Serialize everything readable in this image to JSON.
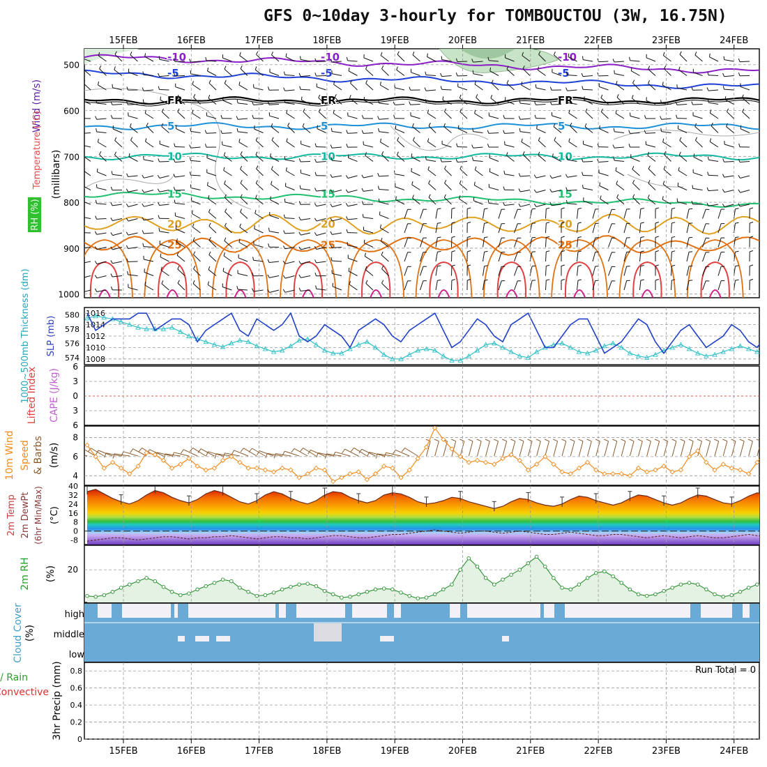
{
  "title": "GFS 0~10day 3-hourly for TOMBOUCTOU (3W, 16.75N)",
  "dates": [
    "15FEB",
    "16FEB",
    "17FEB",
    "18FEB",
    "19FEB",
    "20FEB",
    "21FEB",
    "22FEB",
    "23FEB",
    "24FEB"
  ],
  "colors": {
    "red": "#e03030",
    "orange": "#f08c1e",
    "green": "#2aa02a",
    "cyan": "#2ab8c8",
    "blue": "#2050d0",
    "purple": "#c060d0",
    "brown": "#8b5a2b",
    "sky": "#5aa8d8"
  },
  "panels": {
    "upper": {
      "label_wind": "Wind (m/s)",
      "label_temp": "Temperature (°C)",
      "label_rh": "RH (%)",
      "label_mb": "(millibars)",
      "levels": [
        "500",
        "600",
        "700",
        "800",
        "900",
        "1000"
      ],
      "contours": [
        {
          "label": "-10",
          "color": "#8a1fc8",
          "p": 484
        },
        {
          "label": "-5",
          "color": "#2040d8",
          "p": 519
        },
        {
          "label": "FR",
          "color": "#000000",
          "p": 578
        },
        {
          "label": "5",
          "color": "#1e90d8",
          "p": 634
        },
        {
          "label": "10",
          "color": "#10b8a0",
          "p": 700
        },
        {
          "label": "15",
          "color": "#20c070",
          "p": 782
        },
        {
          "label": "20",
          "color": "#e0a020",
          "p": 848
        },
        {
          "label": "25",
          "color": "#e07010",
          "p": 893
        }
      ]
    },
    "slp": {
      "label_thick": "1000~500mb Thickness (dm)",
      "label_slp": "SLP (mb)",
      "thick_ticks": [
        "580",
        "578",
        "576",
        "574"
      ],
      "slp_ticks": [
        "1016",
        "1014",
        "1012",
        "1010",
        "1008"
      ]
    },
    "cape": {
      "label_li": "Lifted Index",
      "label_cape": "CAPE (J/kg)",
      "ticks": [
        "6",
        "3",
        "0",
        "3",
        "6"
      ]
    },
    "wind10": {
      "label1": "10m Wind",
      "label2": "Speed",
      "label3": "& Barbs",
      "label4": "(m/s)",
      "ticks": [
        "8",
        "6",
        "4"
      ]
    },
    "temp2m": {
      "label1": "2m Temp",
      "label2": "2m DewPt",
      "label3": "(6hr Min/Max)",
      "label4": "(°C)",
      "ticks": [
        "40",
        "32",
        "24",
        "16",
        "8",
        "0",
        "-8"
      ]
    },
    "rh2m": {
      "label1": "2m RH",
      "label2": "(%)",
      "ticks": [
        "20"
      ]
    },
    "cloud": {
      "label1": "Cloud Cover",
      "label2": "(%)",
      "rows": [
        "high",
        "middle",
        "low"
      ]
    },
    "precip": {
      "label1": "Total / Rain",
      "label2": "Convective",
      "label3": "3hr Precip (mm)",
      "ticks": [
        "0.8",
        "0.6",
        "0.4",
        "0.2",
        "0"
      ],
      "run_total": "Run Total = 0"
    }
  },
  "chart_data": [
    {
      "type": "line",
      "name": "SLP (mb)",
      "x_start": "2025-02-14T12:00Z",
      "step_hours": 3,
      "ylim": [
        1007,
        1017
      ],
      "values": [
        1016,
        1013,
        1014,
        1015,
        1015,
        1015,
        1016,
        1016,
        1013,
        1014,
        1015,
        1015,
        1014,
        1011,
        1013,
        1014,
        1015,
        1016,
        1013,
        1012,
        1015,
        1014,
        1013,
        1014,
        1016,
        1012,
        1011,
        1012,
        1014,
        1013,
        1012,
        1010,
        1013,
        1014,
        1015,
        1014,
        1012,
        1011,
        1013,
        1014,
        1015,
        1016,
        1013,
        1010,
        1011,
        1013,
        1015,
        1014,
        1012,
        1011,
        1014,
        1015,
        1016,
        1013,
        1010,
        1010,
        1012,
        1014,
        1015,
        1015,
        1012,
        1009,
        1010,
        1011,
        1013,
        1015,
        1014,
        1011,
        1009,
        1011,
        1013,
        1014,
        1012,
        1010,
        1011,
        1012,
        1014,
        1013,
        1011,
        1010,
        1012,
        1014,
        1012,
        1010,
        1010,
        1011,
        1013
      ]
    },
    {
      "type": "line",
      "name": "1000~500mb Thickness (dm)",
      "x_start": "2025-02-14T12:00Z",
      "step_hours": 3,
      "ylim": [
        573,
        581
      ],
      "values": [
        579.5,
        579.8,
        579.6,
        579.4,
        579.0,
        578.6,
        578.2,
        578.0,
        578.0,
        578.0,
        578.2,
        577.6,
        577.0,
        576.6,
        576.2,
        575.8,
        575.5,
        576.0,
        576.4,
        576.2,
        575.6,
        575.2,
        574.8,
        575.0,
        575.6,
        576.4,
        576.6,
        575.8,
        575.0,
        574.6,
        574.6,
        575.2,
        575.8,
        576.2,
        575.4,
        574.4,
        573.8,
        573.8,
        574.4,
        575.0,
        575.2,
        575.0,
        574.2,
        573.6,
        573.6,
        574.2,
        575.0,
        575.8,
        576.0,
        575.4,
        574.8,
        574.2,
        574.0,
        574.8,
        575.4,
        575.8,
        576.0,
        575.4,
        574.8,
        574.6,
        575.0,
        575.6,
        576.0,
        575.4,
        574.6,
        574.2,
        574.0,
        574.4,
        575.0,
        575.4,
        575.8,
        575.2,
        574.6,
        574.2,
        574.4,
        574.8,
        575.2,
        575.6,
        575.2,
        574.8,
        575.4,
        576.0,
        576.2,
        575.8,
        575.4,
        575.0,
        574.6
      ]
    },
    {
      "type": "line",
      "name": "10m Wind Speed (m/s)",
      "x_start": "2025-02-14T12:00Z",
      "step_hours": 3,
      "ylim": [
        3,
        9
      ],
      "values": [
        7.2,
        6.0,
        4.8,
        5.4,
        4.8,
        4.2,
        5.0,
        6.4,
        6.2,
        5.6,
        4.8,
        5.2,
        5.8,
        5.0,
        4.6,
        4.8,
        5.6,
        6.0,
        5.4,
        4.8,
        4.8,
        4.6,
        4.4,
        4.8,
        4.6,
        3.8,
        4.2,
        4.8,
        4.6,
        3.4,
        3.8,
        4.2,
        4.4,
        3.6,
        4.2,
        5.0,
        4.8,
        3.8,
        4.6,
        5.8,
        7.0,
        9.0,
        7.8,
        6.8,
        6.0,
        5.4,
        5.6,
        5.4,
        5.2,
        5.8,
        6.2,
        5.6,
        4.6,
        5.2,
        6.0,
        5.2,
        4.4,
        4.2,
        4.8,
        5.4,
        4.6,
        4.2,
        4.2,
        4.2,
        4.0,
        4.8,
        4.4,
        4.6,
        5.0,
        4.4,
        4.6,
        6.0,
        6.6,
        5.4,
        4.6,
        5.2,
        4.8,
        4.6,
        4.2,
        5.4,
        6.6,
        5.0,
        3.4,
        4.0,
        4.6,
        4.8,
        4.6,
        4.8
      ]
    },
    {
      "type": "area",
      "name": "2m Temp (°C)",
      "x_start": "2025-02-14T12:00Z",
      "step_hours": 3,
      "ylim": [
        -12,
        40
      ],
      "values": [
        35,
        37,
        33,
        29,
        26,
        24,
        27,
        32,
        36,
        34,
        30,
        27,
        25,
        28,
        33,
        36,
        34,
        30,
        26,
        24,
        27,
        32,
        35,
        33,
        29,
        26,
        24,
        27,
        32,
        35,
        34,
        30,
        27,
        25,
        27,
        32,
        34,
        33,
        30,
        26,
        24,
        25,
        27,
        30,
        29,
        26,
        24,
        22,
        20,
        22,
        26,
        29,
        28,
        25,
        23,
        22,
        24,
        28,
        31,
        30,
        27,
        25,
        23,
        25,
        29,
        32,
        31,
        28,
        25,
        23,
        25,
        29,
        32,
        31,
        28,
        25,
        24,
        27,
        31,
        34,
        32,
        28,
        25,
        23,
        22,
        23
      ]
    },
    {
      "type": "line",
      "name": "2m DewPt (°C)",
      "x_start": "2025-02-14T12:00Z",
      "step_hours": 3,
      "values": [
        -9,
        -8,
        -7,
        -6,
        -6,
        -7,
        -8,
        -7,
        -6,
        -5,
        -5,
        -6,
        -7,
        -6,
        -6,
        -5,
        -5,
        -4,
        -5,
        -6,
        -7,
        -6,
        -5,
        -5,
        -6,
        -6,
        -7,
        -6,
        -5,
        -4,
        -4,
        -5,
        -6,
        -6,
        -5,
        -4,
        -3,
        -3,
        -2,
        -1,
        0,
        1,
        0,
        -1,
        -2,
        -1,
        0,
        0,
        -1,
        -2,
        -1,
        0,
        -1,
        -2,
        -3,
        -3,
        -2,
        -1,
        -2,
        -3,
        -4,
        -4,
        -3,
        -3,
        -4,
        -5,
        -6,
        -5,
        -4,
        -5,
        -6,
        -5,
        -4,
        -5,
        -6,
        -6,
        -5,
        -4,
        -3,
        -4,
        -5,
        -6,
        -7,
        -8,
        -9,
        -9
      ]
    },
    {
      "type": "area",
      "name": "2m RH (%)",
      "x_start": "2025-02-14T12:00Z",
      "step_hours": 3,
      "ylim": [
        0,
        35
      ],
      "values": [
        4,
        3.5,
        4.5,
        6.5,
        9,
        11,
        13,
        15,
        13,
        9.5,
        6.5,
        4.5,
        5.5,
        8,
        10,
        12,
        14,
        13,
        9,
        6.5,
        4,
        4.5,
        6,
        8,
        9.5,
        11,
        11.5,
        10,
        7,
        5,
        3,
        3.5,
        5,
        6.5,
        8,
        8.5,
        8,
        6,
        4,
        2.5,
        3,
        5,
        8,
        11,
        20,
        27,
        22,
        15,
        11,
        14,
        17,
        20,
        24,
        28,
        22,
        15,
        9,
        8,
        11,
        15,
        18,
        19,
        16,
        12,
        8,
        5,
        4,
        5,
        7,
        9,
        11,
        12,
        11,
        8,
        5,
        3.5,
        4.5,
        6.5,
        9,
        11,
        13,
        12,
        8,
        5,
        3,
        3.5,
        5,
        7,
        9.5,
        11.5
      ]
    },
    {
      "type": "bar",
      "name": "3hr Precip (mm)",
      "ylim": [
        0,
        0.9
      ],
      "run_total": 0,
      "values": []
    }
  ]
}
